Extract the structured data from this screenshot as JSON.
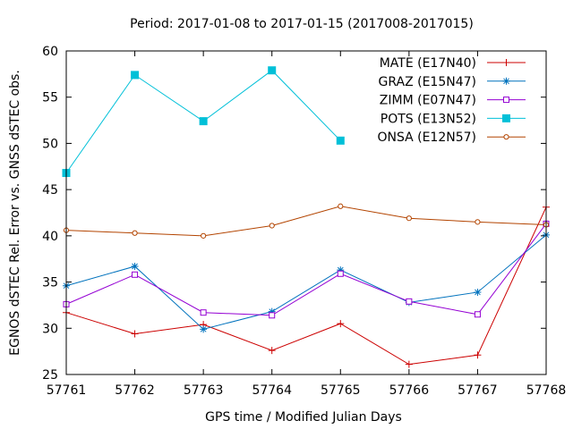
{
  "chart_data": {
    "type": "line",
    "title": "Period: 2017-01-08 to 2017-01-15 (2017008-2017015)",
    "xlabel": "GPS time / Modified Julian Days",
    "ylabel": "EGNOS dSTEC Rel. Error vs. GNSS dSTEC obs.",
    "xlim": [
      57761,
      57768
    ],
    "ylim": [
      25,
      60
    ],
    "xticks": [
      "57761",
      "57762",
      "57763",
      "57764",
      "57765",
      "57766",
      "57767",
      "57768"
    ],
    "yticks": [
      "25",
      "30",
      "35",
      "40",
      "45",
      "50",
      "55",
      "60"
    ],
    "grid": false,
    "legend_position": "top-right",
    "x": [
      57761,
      57762,
      57763,
      57764,
      57765,
      57766,
      57767,
      57768
    ],
    "series": [
      {
        "name": "MATE (E17N40)",
        "color": "#cc0000",
        "marker": "plus",
        "values": [
          31.7,
          29.4,
          30.4,
          27.6,
          30.5,
          26.1,
          27.1,
          43.1
        ]
      },
      {
        "name": "GRAZ (E15N47)",
        "color": "#0072bd",
        "marker": "star",
        "values": [
          34.6,
          36.7,
          29.9,
          31.8,
          36.3,
          32.8,
          33.9,
          40.1
        ]
      },
      {
        "name": "ZIMM (E07N47)",
        "color": "#9400d3",
        "marker": "square-open",
        "values": [
          32.6,
          35.8,
          31.7,
          31.4,
          35.9,
          32.9,
          31.5,
          41.3
        ]
      },
      {
        "name": "POTS (E13N52)",
        "color": "#00c0d8",
        "marker": "square-filled",
        "values": [
          46.8,
          57.4,
          52.4,
          57.9,
          50.3,
          null,
          null,
          null
        ]
      },
      {
        "name": "ONSA (E12N57)",
        "color": "#b34400",
        "marker": "circle-open",
        "values": [
          40.6,
          40.3,
          40.0,
          41.1,
          43.2,
          41.9,
          41.5,
          41.2
        ]
      }
    ]
  }
}
